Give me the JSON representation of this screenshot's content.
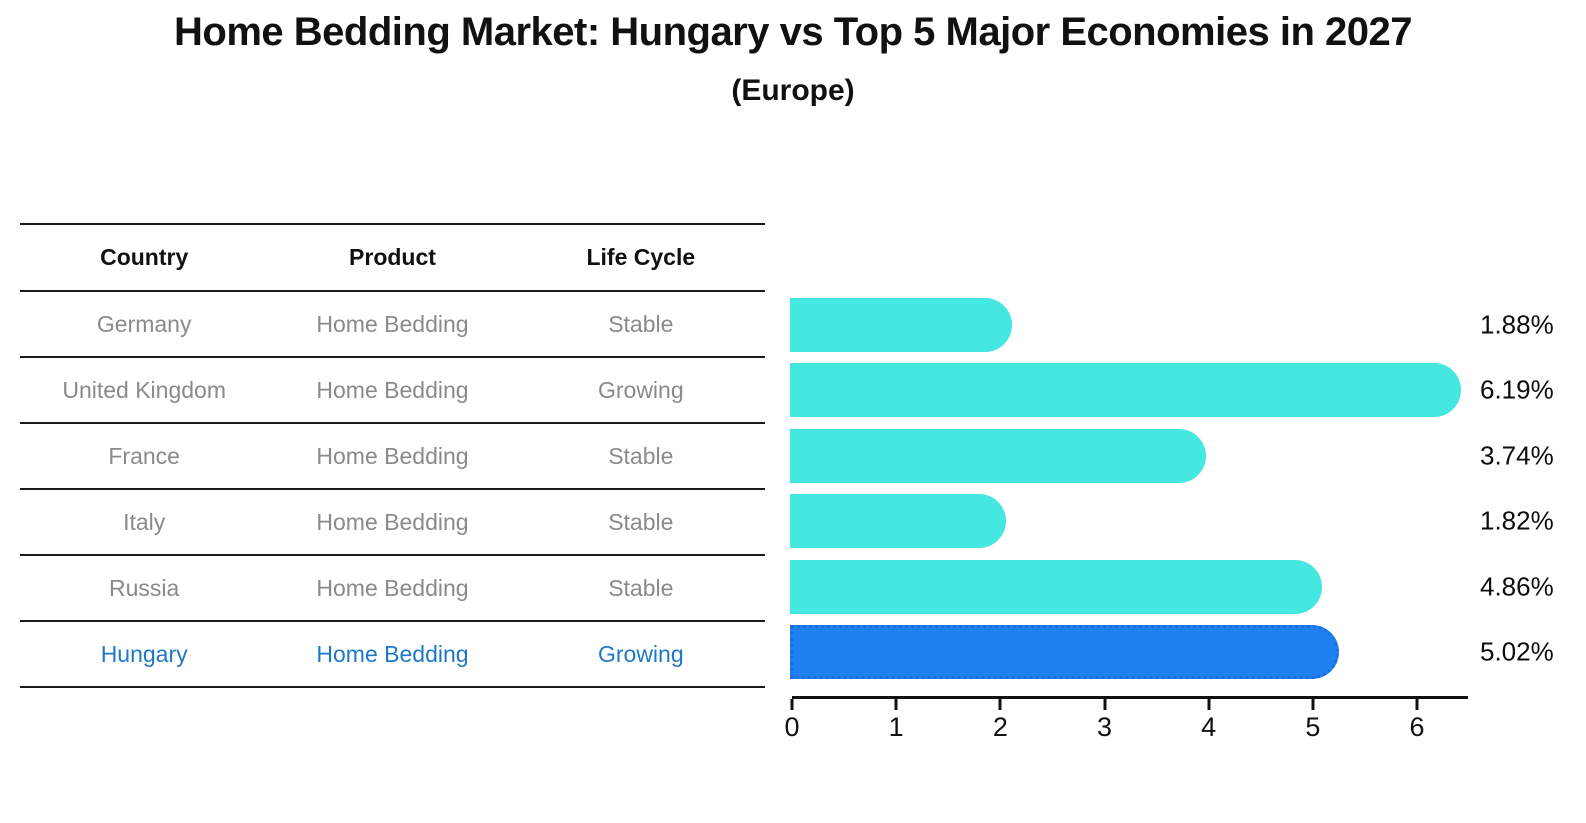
{
  "chart_data": {
    "type": "bar",
    "orientation": "horizontal",
    "title": "Home Bedding Market: Hungary vs Top 5 Major Economies in 2027",
    "subtitle": "(Europe)",
    "table_columns": [
      "Country",
      "Product",
      "Life Cycle"
    ],
    "categories": [
      "Germany",
      "United Kingdom",
      "France",
      "Italy",
      "Russia",
      "Hungary"
    ],
    "values": [
      1.88,
      6.19,
      3.74,
      1.82,
      4.86,
      5.02
    ],
    "rows": [
      {
        "country": "Germany",
        "product": "Home Bedding",
        "life_cycle": "Stable",
        "value": 1.88,
        "label": "1.88%",
        "highlight": false
      },
      {
        "country": "United Kingdom",
        "product": "Home Bedding",
        "life_cycle": "Growing",
        "value": 6.19,
        "label": "6.19%",
        "highlight": false
      },
      {
        "country": "France",
        "product": "Home Bedding",
        "life_cycle": "Stable",
        "value": 3.74,
        "label": "3.74%",
        "highlight": false
      },
      {
        "country": "Italy",
        "product": "Home Bedding",
        "life_cycle": "Stable",
        "value": 1.82,
        "label": "1.82%",
        "highlight": false
      },
      {
        "country": "Russia",
        "product": "Home Bedding",
        "life_cycle": "Stable",
        "value": 4.86,
        "label": "4.86%",
        "highlight": false
      },
      {
        "country": "Hungary",
        "product": "Home Bedding",
        "life_cycle": "Growing",
        "value": 5.02,
        "label": "5.02%",
        "highlight": true
      }
    ],
    "xlabel": "",
    "ylabel": "",
    "xlim": [
      0,
      6.5
    ],
    "x_ticks": [
      0,
      1,
      2,
      3,
      4,
      5,
      6
    ],
    "grid": false,
    "legend": "none",
    "colors": {
      "bar": "#45E7E1",
      "bar_highlight": "#1F80F0",
      "bar_highlight_border": "#1A70E0",
      "highlight_text": "#1E78C8",
      "row_text": "#8A8A8A",
      "header_text": "#111111",
      "line": "#1A1A1A"
    }
  }
}
